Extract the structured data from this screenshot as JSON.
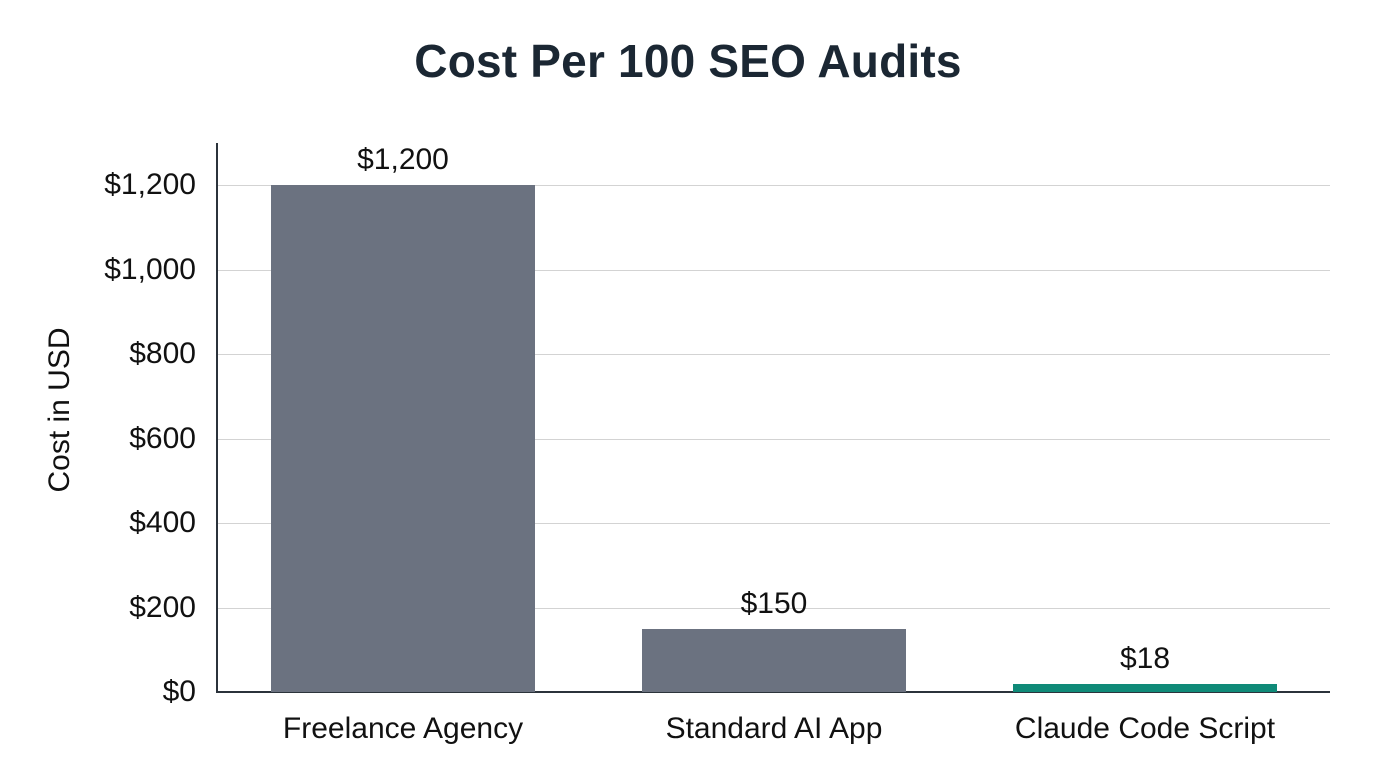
{
  "chart_data": {
    "type": "bar",
    "title": "Cost Per 100 SEO Audits",
    "xlabel": "",
    "ylabel": "Cost in USD",
    "categories": [
      "Freelance Agency",
      "Standard AI App",
      "Claude Code Script"
    ],
    "values": [
      1200,
      150,
      18
    ],
    "value_labels": [
      "$1,200",
      "$150",
      "$18"
    ],
    "bar_colors": [
      "#6b7280",
      "#6b7280",
      "#0f8a78"
    ],
    "ylim": [
      0,
      1300
    ],
    "yticks": [
      0,
      200,
      400,
      600,
      800,
      1000,
      1200
    ],
    "ytick_labels": [
      "$0",
      "$200",
      "$400",
      "$600",
      "$800",
      "$1,000",
      "$1,200"
    ],
    "grid": true,
    "legend": null
  },
  "colors": {
    "title": "#1b2733",
    "bar_default": "#6b7280",
    "bar_highlight": "#0f8a78",
    "gridline": "#d3d3d3",
    "axis": "#2b333b"
  }
}
